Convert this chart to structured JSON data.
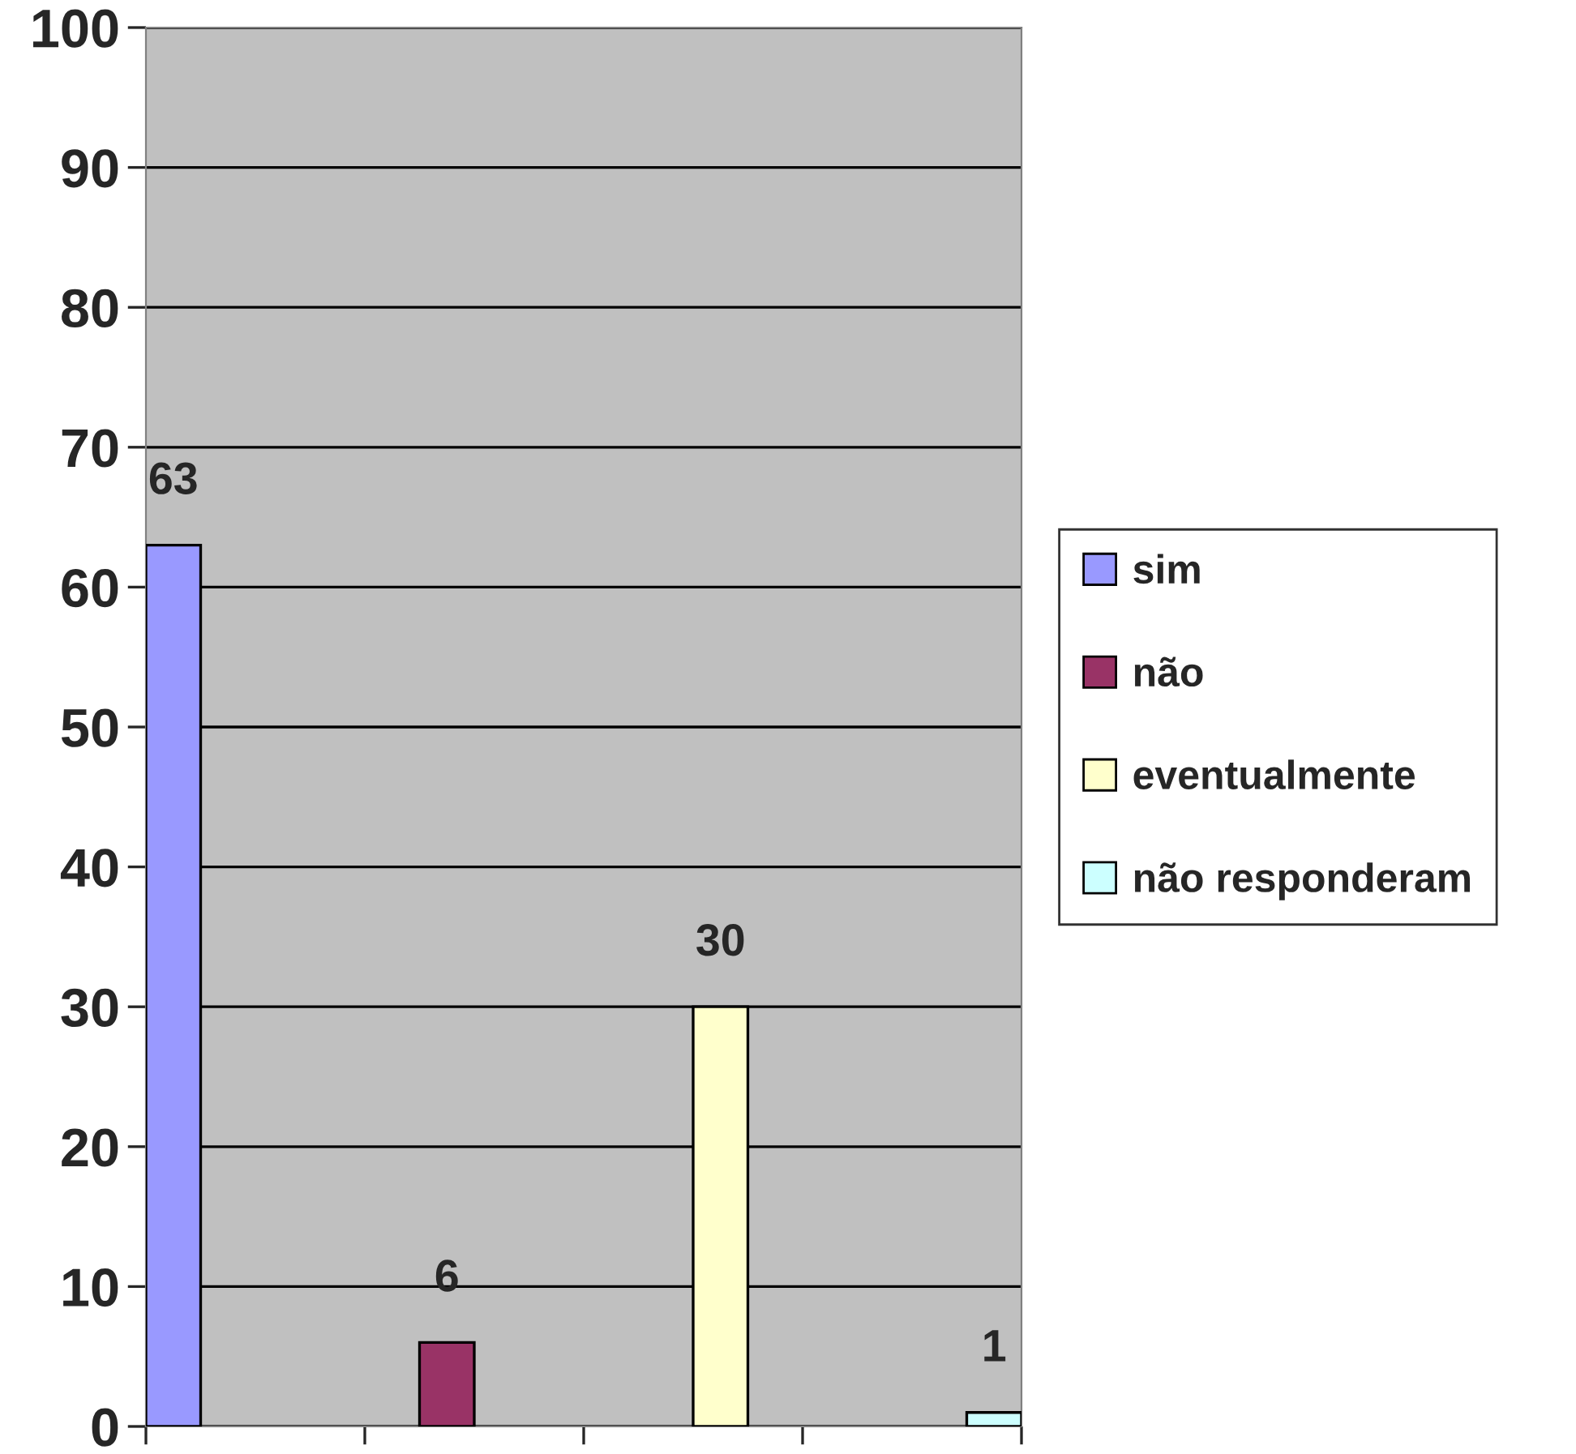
{
  "chart_data": {
    "type": "bar",
    "categories": [
      null,
      null,
      null,
      null
    ],
    "series": [
      {
        "name": "sim",
        "color": "#9999ff",
        "values": [
          63,
          null,
          null,
          null
        ]
      },
      {
        "name": "não",
        "color": "#993366",
        "values": [
          null,
          6,
          null,
          null
        ]
      },
      {
        "name": "eventualmente",
        "color": "#ffffcc",
        "values": [
          null,
          null,
          30,
          null
        ]
      },
      {
        "name": "não responderam",
        "color": "#ccffff",
        "values": [
          null,
          null,
          null,
          1
        ]
      }
    ],
    "ylim": [
      0,
      100
    ],
    "yticks": [
      0,
      10,
      20,
      30,
      40,
      50,
      60,
      70,
      80,
      90,
      100
    ],
    "grid": "y",
    "legend": "right",
    "data_labels": true
  }
}
